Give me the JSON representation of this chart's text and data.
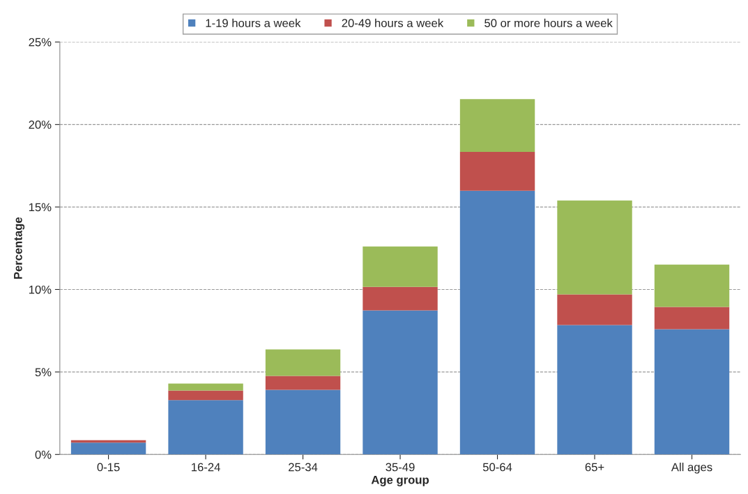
{
  "chart_data": {
    "type": "bar",
    "stacked": true,
    "xlabel": "Age group",
    "ylabel": "Percentage",
    "categories": [
      "0-15",
      "16-24",
      "25-34",
      "35-49",
      "50-64",
      "65+",
      "All ages"
    ],
    "series": [
      {
        "name": "1-19 hours a week",
        "color": "#4f81bd",
        "values": [
          0.72,
          3.29,
          3.92,
          8.73,
          15.98,
          7.84,
          7.59
        ]
      },
      {
        "name": "20-49 hours a week",
        "color": "#c0504d",
        "values": [
          0.15,
          0.59,
          0.84,
          1.43,
          2.36,
          1.86,
          1.35
        ]
      },
      {
        "name": "50 or more hours a week",
        "color": "#9bbb59",
        "values": [
          0.0,
          0.42,
          1.61,
          2.45,
          3.2,
          5.69,
          2.57
        ]
      }
    ],
    "ylim": [
      0,
      25
    ],
    "yticks": [
      {
        "value": 0,
        "label": "0%"
      },
      {
        "value": 5,
        "label": "5%"
      },
      {
        "value": 10,
        "label": "10%"
      },
      {
        "value": 15,
        "label": "15%"
      },
      {
        "value": 20,
        "label": "20%"
      },
      {
        "value": 25,
        "label": "25%"
      }
    ],
    "grid": "y",
    "legend": "top"
  }
}
